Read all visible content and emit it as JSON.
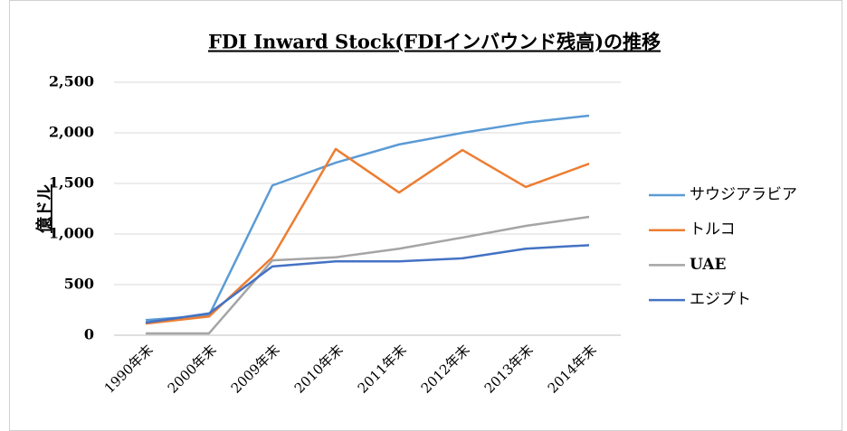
{
  "chart_data": {
    "type": "line",
    "title": "FDI Inward Stock(FDIインバウンド残高)の推移",
    "y_label": "億ドル",
    "categories": [
      "1990年末",
      "2000年末",
      "2009年末",
      "2010年末",
      "2011年末",
      "2012年末",
      "2013年末",
      "2014年末"
    ],
    "series": [
      {
        "name": "サウジアラビア",
        "color": "#5b9bd5",
        "values": [
          150,
          195,
          1480,
          1705,
          1885,
          2000,
          2100,
          2170
        ]
      },
      {
        "name": "トルコ",
        "color": "#ed7d31",
        "values": [
          115,
          185,
          770,
          1840,
          1410,
          1830,
          1465,
          1695
        ]
      },
      {
        "name": "UAE",
        "color": "#a5a5a5",
        "values": [
          18,
          18,
          740,
          770,
          855,
          965,
          1080,
          1170
        ]
      },
      {
        "name": "エジプト",
        "color": "#4472c4",
        "values": [
          125,
          215,
          680,
          730,
          730,
          760,
          855,
          890
        ]
      }
    ],
    "ylim": [
      0,
      2500
    ],
    "yticks": [
      0,
      500,
      {
        "value": 1000,
        "label": "1,000"
      },
      {
        "value": 1500,
        "label": "1,500"
      },
      {
        "value": 2000,
        "label": "2,000"
      },
      {
        "value": 2500,
        "label": "2,500"
      }
    ],
    "grid": true,
    "legend": "right"
  }
}
